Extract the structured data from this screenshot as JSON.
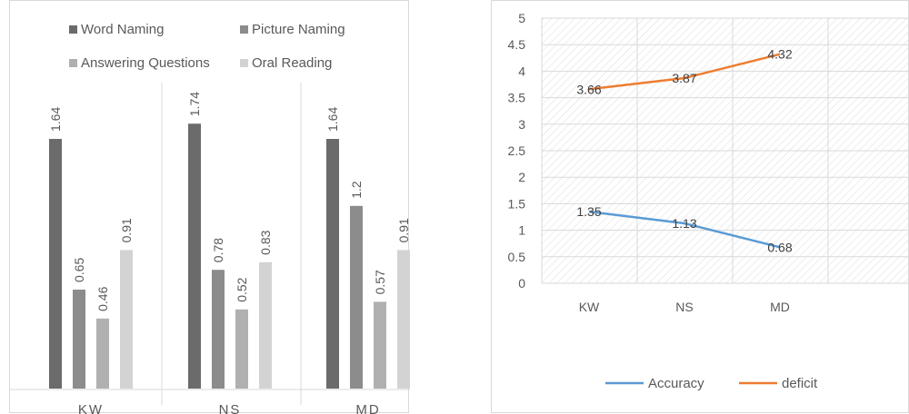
{
  "chart_data": [
    {
      "type": "bar",
      "categories": [
        "KW",
        "NS",
        "MD"
      ],
      "series": [
        {
          "name": "Word Naming",
          "values": [
            1.64,
            1.74,
            1.64
          ],
          "color": "#6b6b6b"
        },
        {
          "name": "Picture Naming",
          "values": [
            0.65,
            0.78,
            1.2
          ],
          "color": "#8c8c8c"
        },
        {
          "name": "Answering Questions",
          "values": [
            0.46,
            0.52,
            0.57
          ],
          "color": "#b0b0b0"
        },
        {
          "name": "Oral Reading",
          "values": [
            0.91,
            0.83,
            0.91
          ],
          "color": "#d3d3d3"
        }
      ],
      "data_labels": [
        [
          "1.64",
          "1.74",
          "1.64"
        ],
        [
          "0.65",
          "0.78",
          "1.2"
        ],
        [
          "0.46",
          "0.52",
          "0.57"
        ],
        [
          "0.91",
          "0.83",
          "0.91"
        ]
      ],
      "ylim": [
        0,
        2
      ],
      "legend_position": "top",
      "grid": false
    },
    {
      "type": "line",
      "categories": [
        "KW",
        "NS",
        "MD"
      ],
      "series": [
        {
          "name": "Accuracy",
          "values": [
            1.35,
            1.13,
            0.68
          ],
          "color": "#5b9bd5"
        },
        {
          "name": "deficit",
          "values": [
            3.66,
            3.87,
            4.32
          ],
          "color": "#ed7d31"
        }
      ],
      "ylim": [
        0,
        5
      ],
      "yticks": [
        "0",
        "0.5",
        "1",
        "1.5",
        "2",
        "2.5",
        "3",
        "3.5",
        "4",
        "4.5",
        "5"
      ],
      "legend_position": "bottom",
      "grid": true
    }
  ]
}
